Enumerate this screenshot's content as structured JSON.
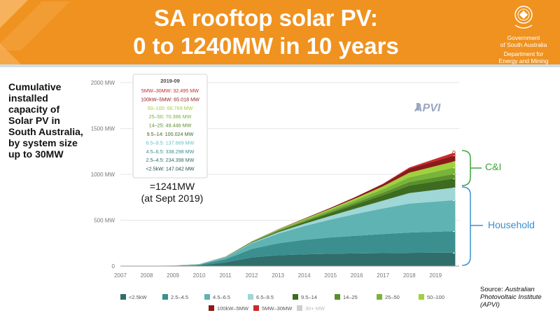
{
  "slide": {
    "title_line1": "SA rooftop solar PV:",
    "title_line2": "0 to 1240MW in 10 years",
    "gov_line1": "Government",
    "gov_line2": "of South Australia",
    "gov_line3": "Department for",
    "gov_line4": "Energy and Mining",
    "caption": "Cumulative installed capacity of Solar PV in South Australia, by system size up to 30MW",
    "annotation_line1": "=1241MW",
    "annotation_line2": "(at Sept 2019)",
    "ci_label": "C&I",
    "household_label": "Household",
    "source_prefix": "Source: ",
    "source_text": "Australian Photovoltaic Institute (APVI)",
    "watermark": "APVI",
    "colors": {
      "banner": "#f0921f",
      "bracket": "#3b8fd0",
      "ci_bracket": "#3aa63a"
    }
  },
  "chart_data": {
    "type": "area",
    "stacked": true,
    "x": [
      2007,
      2008,
      2009,
      2010,
      2011,
      2012,
      2013,
      2014,
      2015,
      2016,
      2017,
      2018,
      2019.75
    ],
    "xticks": [
      "2007",
      "2008",
      "2009",
      "2010",
      "2011",
      "2012",
      "2013",
      "2014",
      "2015",
      "2016",
      "2017",
      "2018",
      "2019"
    ],
    "ylim": [
      0,
      2000
    ],
    "yticks": [
      0,
      500,
      1000,
      1500,
      2000
    ],
    "ytick_labels": [
      "0",
      "500 MW",
      "1000 MW",
      "1500 MW",
      "2000 MW"
    ],
    "series": [
      {
        "name": "<2.5kW",
        "color": "#2f6e6b",
        "values": [
          0,
          1,
          2,
          8,
          40,
          95,
          118,
          128,
          134,
          138,
          141,
          144,
          147.042
        ]
      },
      {
        "name": "2.5–4.5",
        "color": "#3b8f8f",
        "values": [
          0,
          1,
          2,
          7,
          35,
          92,
          130,
          158,
          178,
          193,
          208,
          222,
          234.398
        ]
      },
      {
        "name": "4.5–6.5",
        "color": "#5fb3b3",
        "values": [
          0,
          0.5,
          1,
          4,
          20,
          60,
          105,
          150,
          195,
          240,
          280,
          315,
          338.298
        ]
      },
      {
        "name": "6.5–9.5",
        "color": "#9fd6d6",
        "values": [
          0,
          0,
          0.5,
          1,
          3,
          8,
          15,
          25,
          40,
          60,
          85,
          115,
          137.669
        ]
      },
      {
        "name": "9.5–14",
        "color": "#3d6b1f",
        "values": [
          0,
          0,
          0,
          0.5,
          2,
          6,
          12,
          20,
          32,
          45,
          60,
          82,
          100.024
        ]
      },
      {
        "name": "14–25",
        "color": "#5a8f2a",
        "values": [
          0,
          0,
          0,
          0.2,
          1,
          3,
          6,
          10,
          15,
          21,
          28,
          38,
          49.446
        ]
      },
      {
        "name": "25–50",
        "color": "#79b33a",
        "values": [
          0,
          0,
          0,
          0.2,
          1,
          3,
          7,
          12,
          18,
          26,
          36,
          52,
          70.386
        ]
      },
      {
        "name": "50–100",
        "color": "#9fd13c",
        "values": [
          0,
          0,
          0,
          0.1,
          0.5,
          2,
          5,
          9,
          14,
          21,
          32,
          50,
          66.769
        ]
      },
      {
        "name": "100kW–5MW",
        "color": "#8b1a1a",
        "values": [
          0,
          0,
          0,
          0,
          0.2,
          1,
          3,
          6,
          10,
          16,
          25,
          45,
          65.018
        ]
      },
      {
        "name": "5MW–30MW",
        "color": "#cc2a2a",
        "values": [
          0,
          0,
          0,
          0,
          0,
          0,
          0,
          0,
          0,
          0,
          3,
          12,
          32.495
        ]
      },
      {
        "name": "30+ MW",
        "color": "#cfcfcf",
        "values": [
          0,
          0,
          0,
          0,
          0,
          0,
          0,
          0,
          0,
          0,
          0,
          0,
          0
        ]
      }
    ],
    "tooltip": {
      "title": "2019-09",
      "rows": [
        {
          "label": "5MW–30MW: 32.495 MW",
          "color": "#cc2a2a"
        },
        {
          "label": "100kW–5MW: 65.018 MW",
          "color": "#8b1a1a"
        },
        {
          "label": "50–100: 66.769 MW",
          "color": "#9fd13c"
        },
        {
          "label": "25–50: 70.386 MW",
          "color": "#79b33a"
        },
        {
          "label": "14–25: 49.446 MW",
          "color": "#5a8f2a"
        },
        {
          "label": "9.5–14: 100.024 MW",
          "color": "#3d6b1f"
        },
        {
          "label": "6.5–9.5: 137.669 MW",
          "color": "#5fc2c2"
        },
        {
          "label": "4.5–6.5: 338.298 MW",
          "color": "#3b8f8f"
        },
        {
          "label": "2.5–4.5: 234.398 MW",
          "color": "#2f6e6b"
        },
        {
          "label": "<2.5kW: 147.042 MW",
          "color": "#1f4f4c"
        }
      ]
    }
  }
}
